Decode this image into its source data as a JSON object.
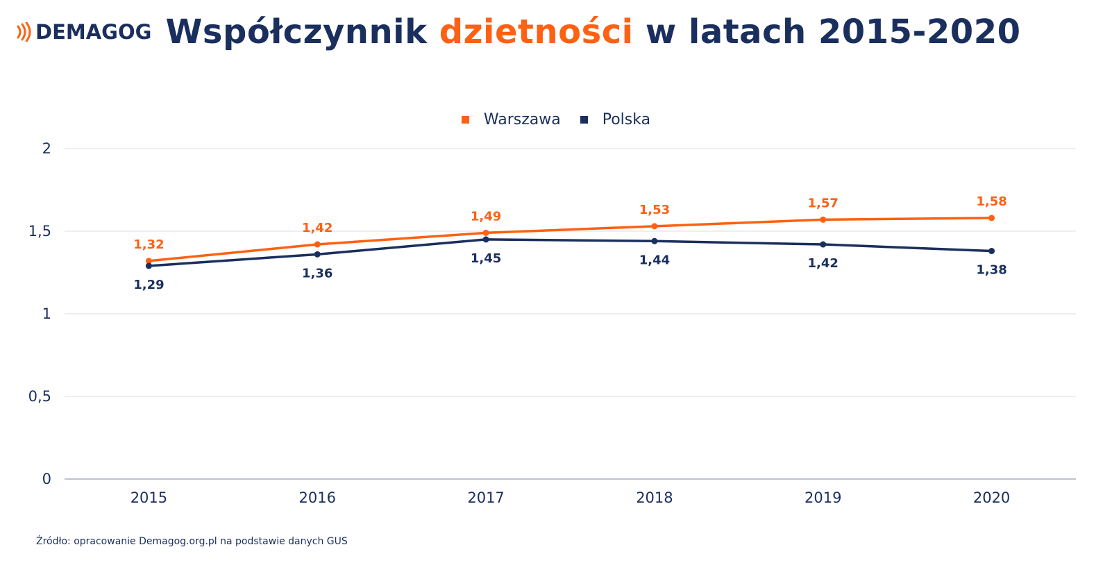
{
  "header": {
    "logo_text": "DEMAGOG",
    "title_part1": "Współczynnik ",
    "title_accent": "dzietności",
    "title_part2": " w latach 2015-2020"
  },
  "colors": {
    "navy": "#1b2f5e",
    "orange": "#fd6113",
    "grid": "#d9dde3",
    "baseline": "#a6b0bf"
  },
  "chart_data": {
    "type": "line",
    "x": [
      "2015",
      "2016",
      "2017",
      "2018",
      "2019",
      "2020"
    ],
    "series": [
      {
        "name": "Warszawa",
        "color": "#fd6113",
        "values": [
          1.32,
          1.42,
          1.49,
          1.53,
          1.57,
          1.58
        ],
        "labels": [
          "1,32",
          "1,42",
          "1,49",
          "1,53",
          "1,57",
          "1,58"
        ],
        "label_position": "above"
      },
      {
        "name": "Polska",
        "color": "#1b2f5e",
        "values": [
          1.29,
          1.36,
          1.45,
          1.44,
          1.42,
          1.38
        ],
        "labels": [
          "1,29",
          "1,36",
          "1,45",
          "1,44",
          "1,42",
          "1,38"
        ],
        "label_position": "below"
      }
    ],
    "yticks": [
      0,
      0.5,
      1,
      1.5,
      2
    ],
    "ytick_labels": [
      "0",
      "0,5",
      "1",
      "1,5",
      "2"
    ],
    "ylim": [
      0,
      2
    ],
    "grid": true,
    "legend_position": "top-center",
    "title": "Współczynnik dzietności w latach 2015-2020",
    "xlabel": "",
    "ylabel": ""
  },
  "source": "Źródło: opracowanie Demagog.org.pl na podstawie danych  GUS"
}
